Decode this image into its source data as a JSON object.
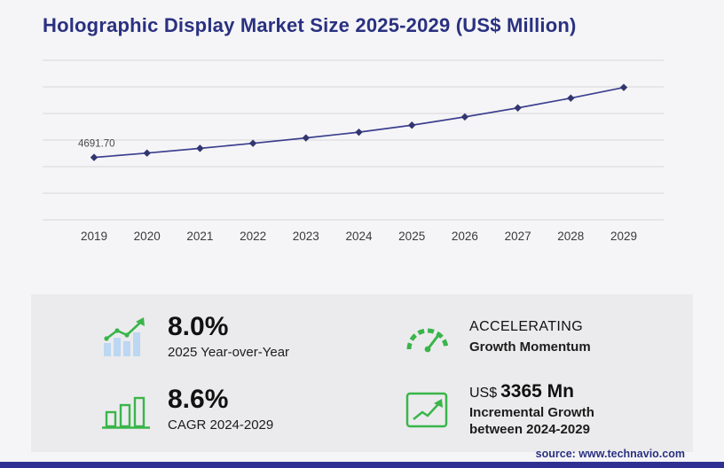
{
  "page": {
    "title": "Holographic Display Market Size 2025-2029 (US$ Million)",
    "source": "source: www.technavio.com"
  },
  "colors": {
    "navy": "#2a3180",
    "line": "#3c3f8f",
    "marker": "#32366f",
    "grid": "#d7d7d9",
    "green": "#39b54a",
    "bar_blue": "#bcd7f2",
    "panel": "#ebebed"
  },
  "chart_data": {
    "type": "line",
    "title": "Holographic Display Market Size 2025-2029 (US$ Million)",
    "x": [
      "2019",
      "2020",
      "2021",
      "2022",
      "2023",
      "2024",
      "2025",
      "2026",
      "2027",
      "2028",
      "2029"
    ],
    "values": [
      4691.7,
      5020,
      5375,
      5755,
      6160,
      6590,
      7117,
      7740,
      8417,
      9153,
      9955
    ],
    "point_label": {
      "index": 0,
      "text": "4691.70"
    },
    "xlabel": "",
    "ylabel": "",
    "ylim": [
      0,
      12000
    ],
    "grid_step": 2000,
    "grid": "horizontal",
    "legend": "none"
  },
  "stats": {
    "yoy": {
      "value": "8.0%",
      "label": "2025 Year-over-Year"
    },
    "momentum": {
      "line1": "ACCELERATING",
      "line2": "Growth Momentum"
    },
    "cagr": {
      "value": "8.6%",
      "label": "CAGR 2024-2029"
    },
    "incremental": {
      "currency": "US$",
      "value": "3365 Mn",
      "label_line1": "Incremental Growth",
      "label_line2": "between 2024-2029"
    }
  }
}
